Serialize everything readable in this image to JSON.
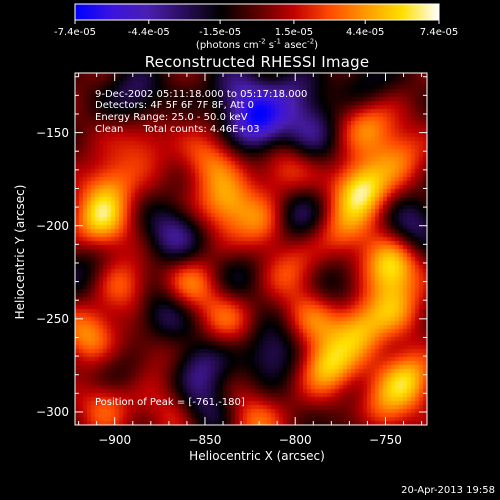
{
  "colorbar": {
    "tick_labels": [
      "-7.4e-05",
      "-4.4e-05",
      "-1.5e-05",
      "1.5e-05",
      "4.4e-05",
      "7.4e-05"
    ],
    "tick_values": [
      -7.4e-05,
      -4.4e-05,
      -1.5e-05,
      1.5e-05,
      4.4e-05,
      7.4e-05
    ],
    "range": [
      -7.4e-05,
      7.4e-05
    ],
    "units_prefix": "(photons cm",
    "units_exp1": "-2",
    "units_mid": " s",
    "units_exp2": "-1",
    "units_mid2": " asec",
    "units_exp3": "-2",
    "units_suffix": ")",
    "colors": [
      "#0000ff",
      "#3b14e0",
      "#4a1fb0",
      "#2a0d5a",
      "#000000",
      "#5a0000",
      "#c00000",
      "#ff4a00",
      "#ff9a00",
      "#ffe000",
      "#ffffff"
    ]
  },
  "title": "Reconstructed RHESSI Image",
  "info": {
    "time_range": "9-Dec-2002 05:11:18.000 to 05:17:18.000",
    "detectors": "Detectors: 4F 5F 6F 7F 8F, Att 0",
    "energy": "Energy Range: 25.0 - 50.0 keV",
    "method": "Clean",
    "counts": "Total counts: 4.46E+03"
  },
  "peak": "Position of Peak = [-761,-180]",
  "peak_position": [
    -761,
    -180
  ],
  "axes": {
    "xlabel": "Heliocentric X (arcsec)",
    "ylabel": "Heliocentric Y (arcsec)",
    "xlim": [
      -922,
      -727
    ],
    "ylim": [
      -307,
      -118
    ],
    "x_ticks": [
      -900,
      -850,
      -800,
      -750
    ],
    "x_tick_labels": [
      "−900",
      "−850",
      "−800",
      "−750"
    ],
    "y_ticks": [
      -150,
      -200,
      -250,
      -300
    ],
    "y_tick_labels": [
      "−150",
      "−200",
      "−250",
      "−300"
    ]
  },
  "timestamp": "20-Apr-2013 19:58",
  "heatmap": {
    "value_range": [
      -7.4e-05,
      7.4e-05
    ],
    "hotspots": [
      {
        "x": -763,
        "y": -180,
        "amp": 1.0
      },
      {
        "x": -747,
        "y": -222,
        "amp": 0.9
      },
      {
        "x": -773,
        "y": -203,
        "amp": 0.55
      },
      {
        "x": -908,
        "y": -198,
        "amp": 0.8
      },
      {
        "x": -903,
        "y": -178,
        "amp": 0.55
      },
      {
        "x": -915,
        "y": -258,
        "amp": 0.65
      },
      {
        "x": -895,
        "y": -232,
        "amp": 0.5
      },
      {
        "x": -838,
        "y": -188,
        "amp": 0.7
      },
      {
        "x": -818,
        "y": -200,
        "amp": 0.55
      },
      {
        "x": -848,
        "y": -165,
        "amp": 0.5
      },
      {
        "x": -806,
        "y": -170,
        "amp": 0.45
      },
      {
        "x": -760,
        "y": -145,
        "amp": 0.6
      },
      {
        "x": -742,
        "y": -162,
        "amp": 0.5
      },
      {
        "x": -782,
        "y": -275,
        "amp": 0.85
      },
      {
        "x": -765,
        "y": -255,
        "amp": 0.75
      },
      {
        "x": -738,
        "y": -282,
        "amp": 0.8
      },
      {
        "x": -752,
        "y": -300,
        "amp": 0.55
      },
      {
        "x": -745,
        "y": -243,
        "amp": 0.55
      },
      {
        "x": -858,
        "y": -232,
        "amp": 0.55
      },
      {
        "x": -838,
        "y": -250,
        "amp": 0.45
      },
      {
        "x": -905,
        "y": -295,
        "amp": 0.55
      },
      {
        "x": -868,
        "y": -302,
        "amp": 0.35
      },
      {
        "x": -823,
        "y": -305,
        "amp": 0.5
      },
      {
        "x": -802,
        "y": -225,
        "amp": 0.45
      },
      {
        "x": -885,
        "y": -155,
        "amp": 0.4
      },
      {
        "x": -790,
        "y": -250,
        "amp": 0.45
      },
      {
        "x": -877,
        "y": -268,
        "amp": 0.3
      },
      {
        "x": -820,
        "y": -145,
        "amp": -0.95
      },
      {
        "x": -832,
        "y": -128,
        "amp": -0.55
      },
      {
        "x": -888,
        "y": -130,
        "amp": -0.5
      },
      {
        "x": -800,
        "y": -130,
        "amp": -0.5
      },
      {
        "x": -868,
        "y": -205,
        "amp": -0.6
      },
      {
        "x": -873,
        "y": -248,
        "amp": -0.55
      },
      {
        "x": -853,
        "y": -275,
        "amp": -0.55
      },
      {
        "x": -812,
        "y": -268,
        "amp": -0.55
      },
      {
        "x": -800,
        "y": -195,
        "amp": -0.5
      },
      {
        "x": -790,
        "y": -150,
        "amp": -0.45
      },
      {
        "x": -735,
        "y": -200,
        "amp": -0.5
      },
      {
        "x": -917,
        "y": -225,
        "amp": -0.35
      },
      {
        "x": -850,
        "y": -300,
        "amp": -0.45
      },
      {
        "x": -776,
        "y": -232,
        "amp": -0.35
      },
      {
        "x": -760,
        "y": -125,
        "amp": -0.35
      },
      {
        "x": -900,
        "y": -280,
        "amp": -0.3
      },
      {
        "x": -830,
        "y": -228,
        "amp": -0.3
      },
      {
        "x": -765,
        "y": -310,
        "amp": -0.3
      }
    ]
  }
}
